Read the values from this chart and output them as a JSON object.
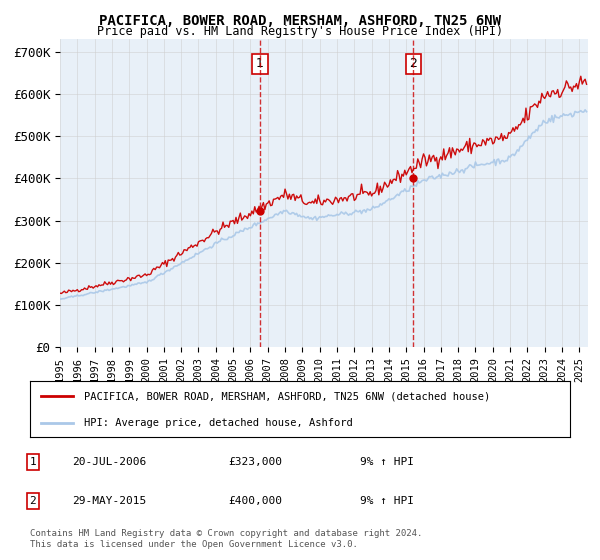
{
  "title": "PACIFICA, BOWER ROAD, MERSHAM, ASHFORD, TN25 6NW",
  "subtitle": "Price paid vs. HM Land Registry's House Price Index (HPI)",
  "ylabel_ticks": [
    "£0",
    "£100K",
    "£200K",
    "£300K",
    "£400K",
    "£500K",
    "£600K",
    "£700K"
  ],
  "ytick_values": [
    0,
    100000,
    200000,
    300000,
    400000,
    500000,
    600000,
    700000
  ],
  "ylim": [
    0,
    730000
  ],
  "xlim_start": 1995.0,
  "xlim_end": 2025.5,
  "sale1": {
    "year": 2006.55,
    "price": 323000,
    "label": "1",
    "date": "20-JUL-2006",
    "hpi_pct": "9%"
  },
  "sale2": {
    "year": 2015.41,
    "price": 400000,
    "label": "2",
    "date": "29-MAY-2015",
    "hpi_pct": "9%"
  },
  "legend_property": "PACIFICA, BOWER ROAD, MERSHAM, ASHFORD, TN25 6NW (detached house)",
  "legend_hpi": "HPI: Average price, detached house, Ashford",
  "note": "Contains HM Land Registry data © Crown copyright and database right 2024.\nThis data is licensed under the Open Government Licence v3.0.",
  "line_color_property": "#cc0000",
  "line_color_hpi": "#aac8e8",
  "background_color": "#e8f0f8",
  "plot_bg": "#ffffff",
  "marker_vline_color": "#cc0000",
  "marker_dot_color": "#cc0000"
}
